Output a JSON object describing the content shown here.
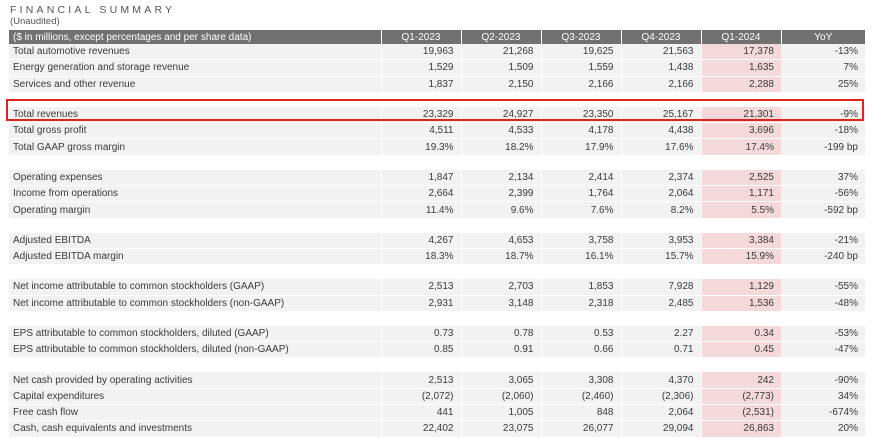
{
  "title": "FINANCIAL SUMMARY",
  "subtitle": "(Unaudited)",
  "header": {
    "label": "($ in millions, except percentages and per share data)",
    "columns": [
      "Q1-2023",
      "Q2-2023",
      "Q3-2023",
      "Q4-2023",
      "Q1-2024",
      "YoY"
    ]
  },
  "groups": [
    {
      "rows": [
        {
          "label": "Total automotive revenues",
          "values": [
            "19,963",
            "21,268",
            "19,625",
            "21,563",
            "17,378",
            "-13%"
          ]
        },
        {
          "label": "Energy generation and storage revenue",
          "values": [
            "1,529",
            "1,509",
            "1,559",
            "1,438",
            "1,635",
            "7%"
          ]
        },
        {
          "label": "Services and other revenue",
          "values": [
            "1,837",
            "2,150",
            "2,166",
            "2,166",
            "2,288",
            "25%"
          ]
        }
      ]
    },
    {
      "rows": [
        {
          "label": "Total revenues",
          "values": [
            "23,329",
            "24,927",
            "23,350",
            "25,167",
            "21,301",
            "-9%"
          ]
        },
        {
          "label": "Total gross profit",
          "values": [
            "4,511",
            "4,533",
            "4,178",
            "4,438",
            "3,696",
            "-18%"
          ]
        },
        {
          "label": "Total GAAP gross margin",
          "values": [
            "19.3%",
            "18.2%",
            "17.9%",
            "17.6%",
            "17.4%",
            "-199 bp"
          ]
        }
      ]
    },
    {
      "rows": [
        {
          "label": "Operating expenses",
          "values": [
            "1,847",
            "2,134",
            "2,414",
            "2,374",
            "2,525",
            "37%"
          ]
        },
        {
          "label": "Income from operations",
          "values": [
            "2,664",
            "2,399",
            "1,764",
            "2,064",
            "1,171",
            "-56%"
          ]
        },
        {
          "label": "Operating margin",
          "values": [
            "11.4%",
            "9.6%",
            "7.6%",
            "8.2%",
            "5.5%",
            "-592 bp"
          ]
        }
      ]
    },
    {
      "rows": [
        {
          "label": "Adjusted EBITDA",
          "values": [
            "4,267",
            "4,653",
            "3,758",
            "3,953",
            "3,384",
            "-21%"
          ]
        },
        {
          "label": "Adjusted EBITDA margin",
          "values": [
            "18.3%",
            "18.7%",
            "16.1%",
            "15.7%",
            "15.9%",
            "-240 bp"
          ]
        }
      ]
    },
    {
      "rows": [
        {
          "label": "Net income attributable to common stockholders (GAAP)",
          "values": [
            "2,513",
            "2,703",
            "1,853",
            "7,928",
            "1,129",
            "-55%"
          ]
        },
        {
          "label": "Net income attributable to common stockholders (non-GAAP)",
          "values": [
            "2,931",
            "3,148",
            "2,318",
            "2,485",
            "1,536",
            "-48%"
          ]
        }
      ]
    },
    {
      "rows": [
        {
          "label": "EPS attributable to common stockholders, diluted (GAAP)",
          "values": [
            "0.73",
            "0.78",
            "0.53",
            "2.27",
            "0.34",
            "-53%"
          ]
        },
        {
          "label": "EPS attributable to common stockholders, diluted (non-GAAP)",
          "values": [
            "0.85",
            "0.91",
            "0.66",
            "0.71",
            "0.45",
            "-47%"
          ]
        }
      ]
    },
    {
      "rows": [
        {
          "label": "Net cash provided by operating activities",
          "values": [
            "2,513",
            "3,065",
            "3,308",
            "4,370",
            "242",
            "-90%"
          ]
        },
        {
          "label": "Capital expenditures",
          "values": [
            "(2,072)",
            "(2,060)",
            "(2,460)",
            "(2,306)",
            "(2,773)",
            "34%"
          ]
        },
        {
          "label": "Free cash flow",
          "values": [
            "441",
            "1,005",
            "848",
            "2,064",
            "(2,531)",
            "-674%"
          ]
        },
        {
          "label": "Cash, cash equivalents and investments",
          "values": [
            "22,402",
            "23,075",
            "26,077",
            "29,094",
            "26,863",
            "20%"
          ]
        }
      ]
    }
  ],
  "colors": {
    "header_bg": "#717171",
    "row_bg": "#f2f2f2",
    "highlight_column": "#f4d9da",
    "highlight_box": "#e0231b"
  }
}
